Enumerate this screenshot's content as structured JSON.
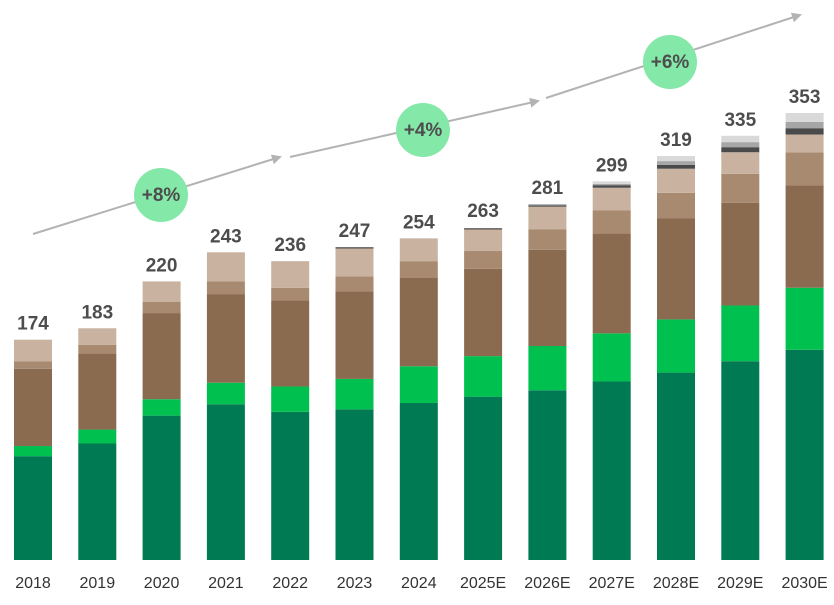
{
  "chart_data": {
    "type": "stacked-bar",
    "categories": [
      "2018",
      "2019",
      "2020",
      "2021",
      "2022",
      "2023",
      "2024",
      "2025E",
      "2026E",
      "2027E",
      "2028E",
      "2029E",
      "2030E"
    ],
    "series": [
      {
        "color": "#007a53",
        "values": [
          82,
          92,
          114,
          123,
          117,
          119,
          124,
          129,
          134,
          141,
          148,
          157,
          166
        ]
      },
      {
        "color": "#00c050",
        "values": [
          8,
          11,
          13,
          17,
          20,
          24,
          29,
          32,
          35,
          38,
          42,
          44,
          49
        ]
      },
      {
        "color": "#8b6b50",
        "values": [
          61,
          60,
          68,
          70,
          68,
          69,
          70,
          69,
          76,
          79,
          80,
          81,
          81
        ]
      },
      {
        "color": "#a88a70",
        "values": [
          6,
          7,
          9,
          10,
          10,
          12,
          13,
          14,
          16,
          18,
          20,
          23,
          26
        ]
      },
      {
        "color": "#c9b3a0",
        "values": [
          17,
          13,
          16,
          23,
          21,
          22,
          18,
          17,
          18,
          18,
          19,
          17,
          14
        ]
      },
      {
        "color": "#4a4a4a",
        "values": [
          0,
          0,
          0,
          0,
          0,
          1,
          0,
          1,
          1,
          2,
          3,
          4,
          5
        ]
      },
      {
        "color": "#a6a6a6",
        "values": [
          0,
          0,
          0,
          0,
          0,
          0,
          0,
          0,
          1,
          1,
          3,
          4,
          5
        ]
      },
      {
        "color": "#d9d9d9",
        "values": [
          0,
          0,
          0,
          0,
          0,
          0,
          0,
          0,
          0,
          2,
          4,
          5,
          7
        ]
      }
    ],
    "totals": [
      174,
      183,
      220,
      243,
      236,
      247,
      254,
      263,
      281,
      299,
      319,
      335,
      353
    ],
    "annotations": [
      "+8%",
      "+4%",
      "+6%"
    ]
  }
}
